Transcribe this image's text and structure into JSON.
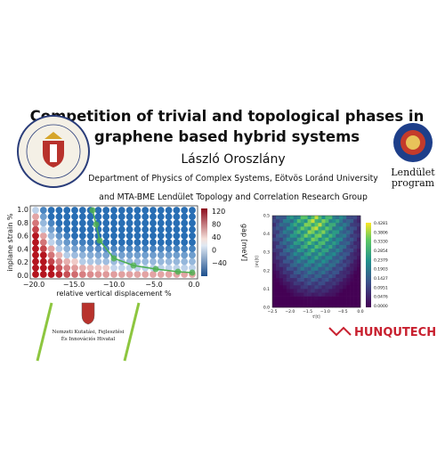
{
  "title_lines": [
    "Competition of trivial and topological phases in",
    "graphene based hybrid systems"
  ],
  "author": "László Oroszlány",
  "affiliations": [
    "Department of Physics of Complex Systems, Eötvös Loránd University",
    "and MTA-BME Lendület Topology and Correlation Research Group"
  ],
  "left_plot": {
    "xlabel": "relative vertical displacement %",
    "ylabel": "inplane strain %",
    "xticks": [
      "−20.0",
      "−15.0",
      "−10.0",
      "−5.0",
      "0.0"
    ],
    "yticks": [
      "0.0",
      "0.2",
      "0.4",
      "0.6",
      "0.8",
      "1.0"
    ],
    "colorbar_label": "gap [meV]",
    "colorbar_ticks": [
      "120",
      "80",
      "40",
      "0",
      "−40"
    ]
  },
  "right_plot": {
    "xlabel": "t'[t]",
    "ylabel": "|m|[t]",
    "xticks": [
      "−2.5",
      "−2.0",
      "−1.5",
      "−1.0",
      "−0.5",
      "0.0"
    ],
    "yticks": [
      "0.0",
      "0.1",
      "0.2",
      "0.3",
      "0.4",
      "0.5"
    ],
    "colorbar_ticks": [
      "0.4281",
      "0.3806",
      "0.3330",
      "0.2854",
      "0.2379",
      "0.1903",
      "0.1427",
      "0.0951",
      "0.0476",
      "0.0000"
    ]
  },
  "logos": {
    "lendulet": [
      "Lendület",
      "program"
    ],
    "nkfih": [
      "Nemzeti Kutatási, Fejlesztési",
      "És Innovációs Hivatal"
    ],
    "hunqutech": "HUNQUTECH"
  }
}
